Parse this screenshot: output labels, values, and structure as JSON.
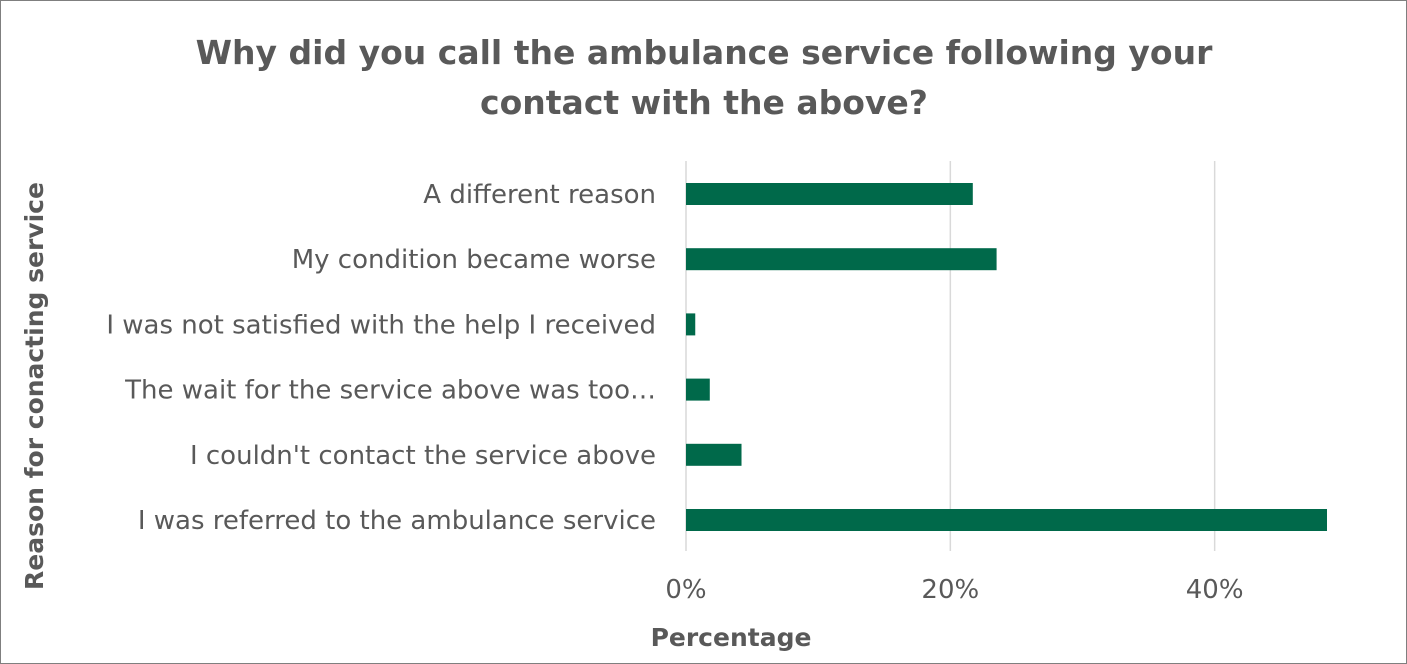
{
  "chart_data": {
    "type": "bar",
    "orientation": "horizontal",
    "title": "Why did you call the ambulance service following your contact with the above?",
    "title_lines": [
      "Why did you call the ambulance service following your",
      "contact with the above?"
    ],
    "xlabel": "Percentage",
    "ylabel": "Reason for conacting service",
    "categories": [
      "A different reason",
      "My condition became worse",
      "I was not satisfied with the help I received",
      "The wait for the service above was too…",
      "I couldn't contact the service above",
      "I was referred to the ambulance service"
    ],
    "values": [
      21.7,
      23.5,
      0.7,
      1.8,
      4.2,
      48.5
    ],
    "xlim": [
      0,
      48.5
    ],
    "xticks": [
      0,
      20,
      40
    ],
    "xtick_labels": [
      "0%",
      "20%",
      "40%"
    ],
    "grid": "vertical",
    "legend": "none",
    "bar_color": "#00694a",
    "text_color": "#595959",
    "grid_color": "#d9d9d9"
  }
}
